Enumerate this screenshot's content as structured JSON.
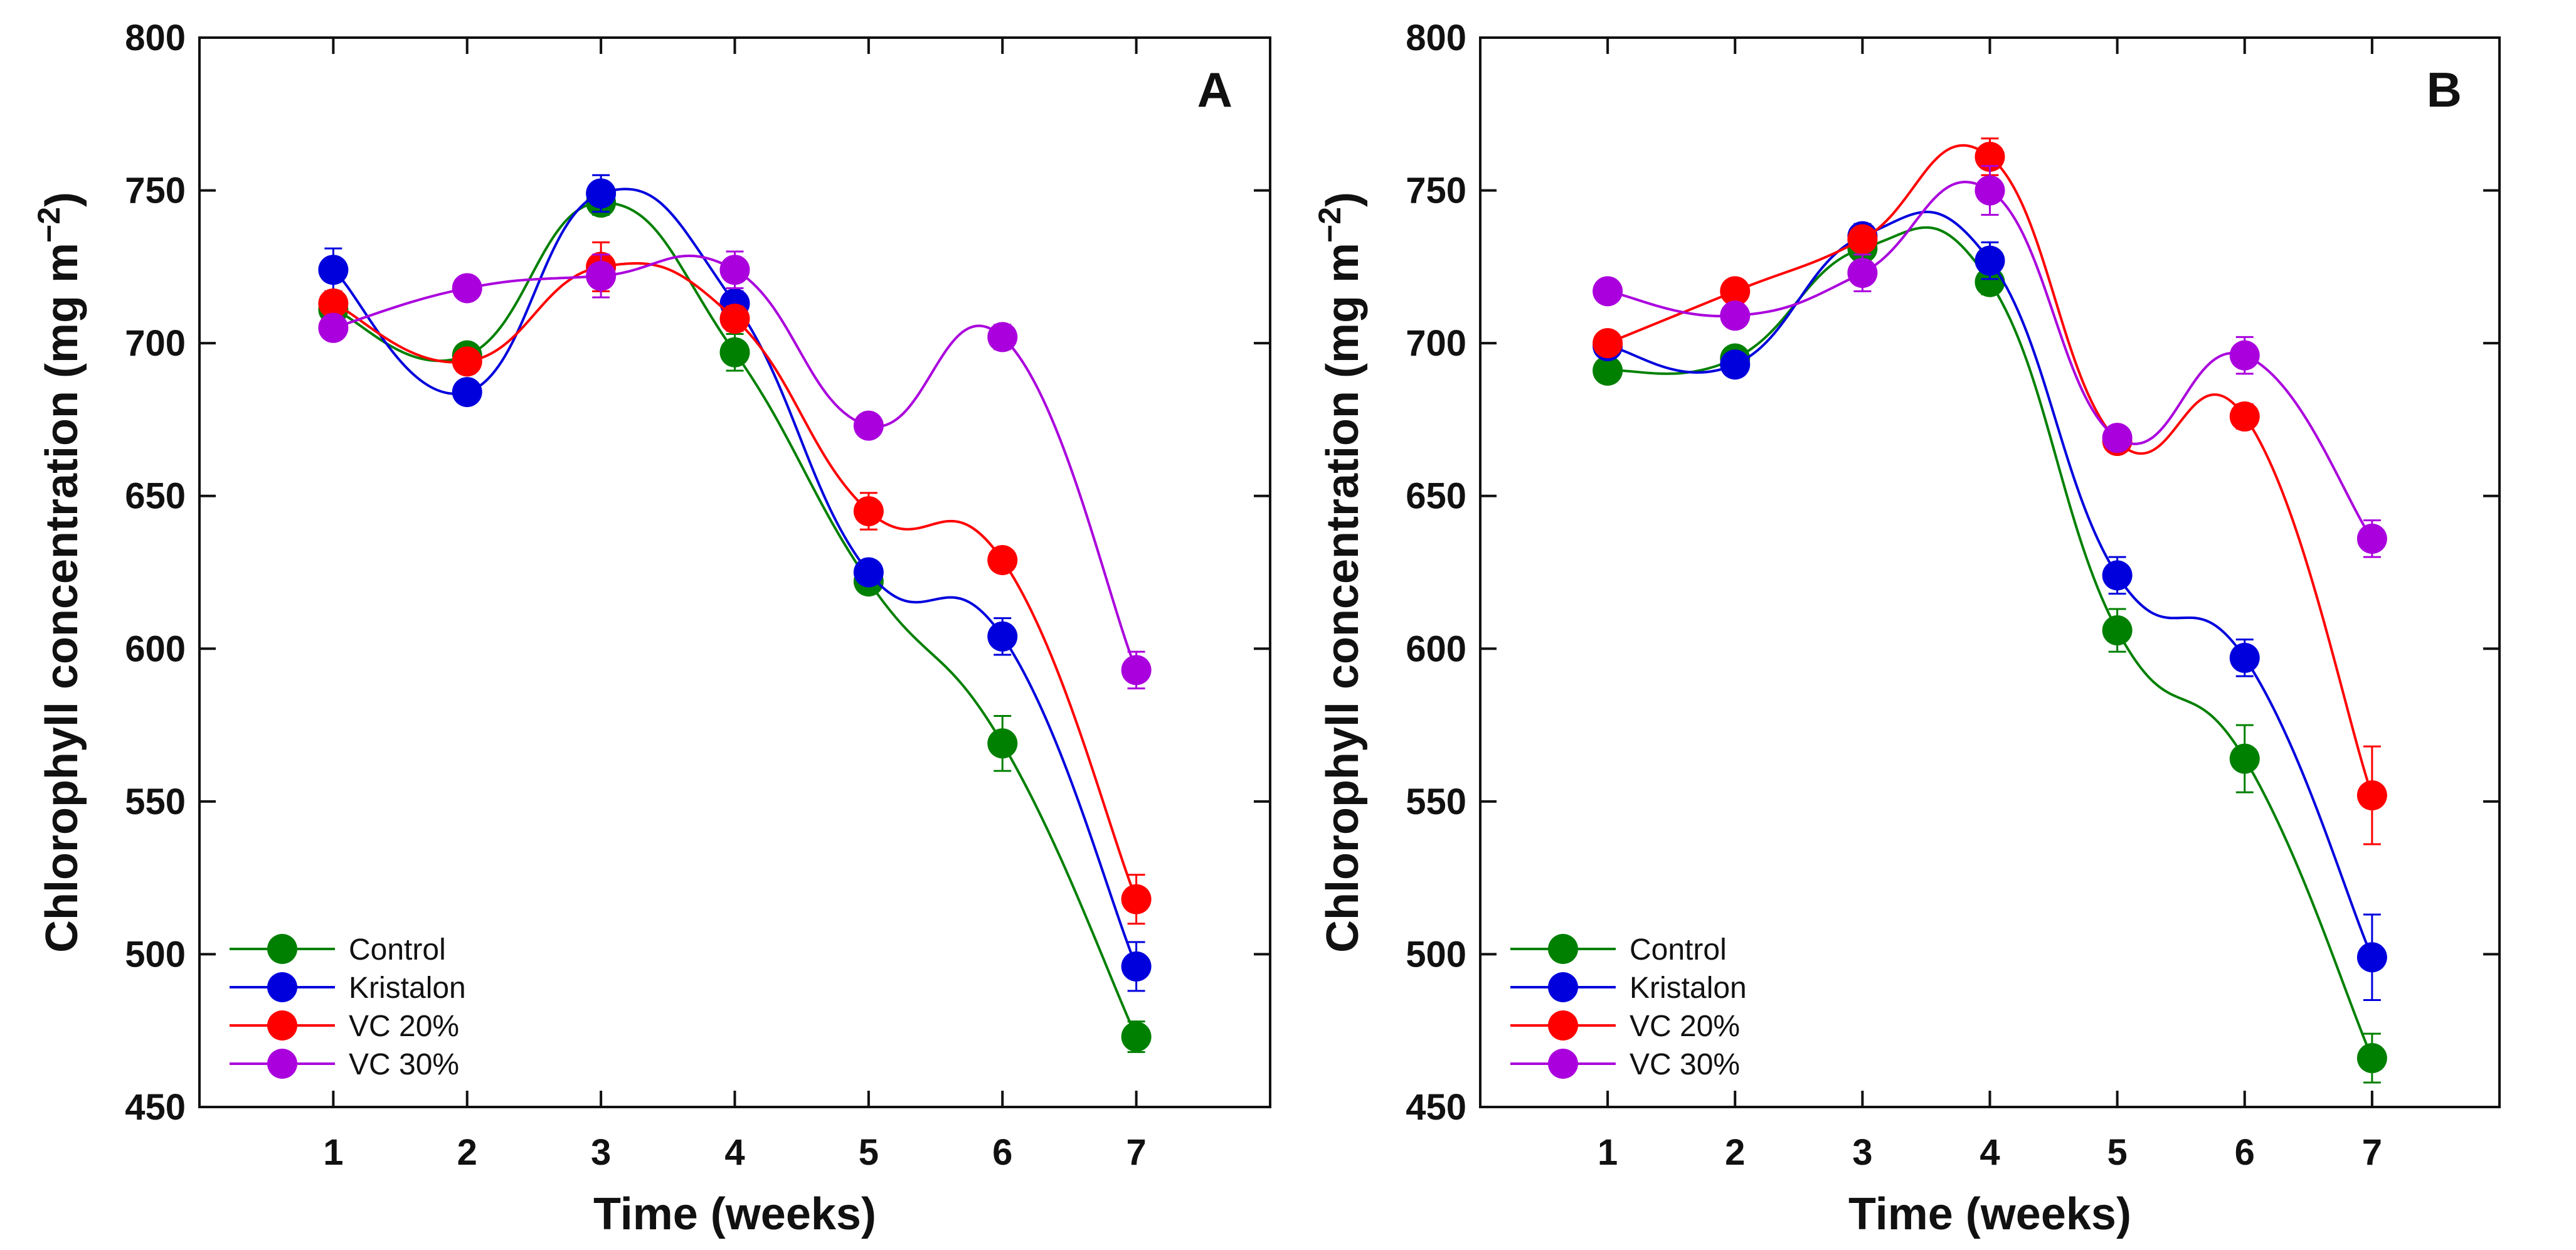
{
  "chart_data": [
    {
      "type": "line",
      "panel_label": "A",
      "xlabel": "Time (weeks)",
      "ylabel": "Chlorophyll concentration (mg m",
      "ylabel_unit_exponent": "−2",
      "ylabel_close": ")",
      "x": [
        1,
        2,
        3,
        4,
        5,
        6,
        7
      ],
      "xlim": [
        0,
        8
      ],
      "ylim": [
        450,
        800
      ],
      "y_ticks": [
        450,
        500,
        550,
        600,
        650,
        700,
        750,
        800
      ],
      "grid": false,
      "legend_position": "bottom-left",
      "series": [
        {
          "name": "Control",
          "color": "#008000",
          "values": [
            711,
            696,
            746,
            697,
            622,
            569,
            473
          ],
          "errors": [
            3,
            3,
            4,
            6,
            3,
            9,
            5
          ]
        },
        {
          "name": "Kristalon",
          "color": "#0000dd",
          "values": [
            724,
            684,
            749,
            713,
            625,
            604,
            496
          ],
          "errors": [
            7,
            3,
            6,
            4,
            3,
            6,
            8
          ]
        },
        {
          "name": "VC 20%",
          "color": "#ff0000",
          "values": [
            713,
            694,
            725,
            708,
            645,
            629,
            518
          ],
          "errors": [
            4,
            3,
            8,
            4,
            6,
            3,
            8
          ]
        },
        {
          "name": "VC 30%",
          "color": "#aa00dd",
          "values": [
            705,
            718,
            722,
            724,
            673,
            702,
            593
          ],
          "errors": [
            3,
            3,
            7,
            6,
            3,
            4,
            6
          ]
        }
      ]
    },
    {
      "type": "line",
      "panel_label": "B",
      "xlabel": "Time (weeks)",
      "ylabel": "Chlorophyll concentration (mg m",
      "ylabel_unit_exponent": "−2",
      "ylabel_close": ")",
      "x": [
        1,
        2,
        3,
        4,
        5,
        6,
        7
      ],
      "xlim": [
        0,
        8
      ],
      "ylim": [
        450,
        800
      ],
      "y_ticks": [
        450,
        500,
        550,
        600,
        650,
        700,
        750,
        800
      ],
      "grid": false,
      "legend_position": "bottom-left",
      "series": [
        {
          "name": "Control",
          "color": "#008000",
          "values": [
            691,
            695,
            731,
            720,
            606,
            564,
            466
          ],
          "errors": [
            3,
            3,
            3,
            4,
            7,
            11,
            8
          ]
        },
        {
          "name": "Kristalon",
          "color": "#0000dd",
          "values": [
            699,
            693,
            735,
            727,
            624,
            597,
            499
          ],
          "errors": [
            3,
            3,
            4,
            6,
            6,
            6,
            14
          ]
        },
        {
          "name": "VC 20%",
          "color": "#ff0000",
          "values": [
            700,
            717,
            734,
            761,
            668,
            676,
            552
          ],
          "errors": [
            3,
            3,
            3,
            6,
            3,
            4,
            16
          ]
        },
        {
          "name": "VC 30%",
          "color": "#aa00dd",
          "values": [
            717,
            709,
            723,
            750,
            669,
            696,
            636
          ],
          "errors": [
            3,
            3,
            6,
            8,
            3,
            6,
            6
          ]
        }
      ]
    }
  ]
}
